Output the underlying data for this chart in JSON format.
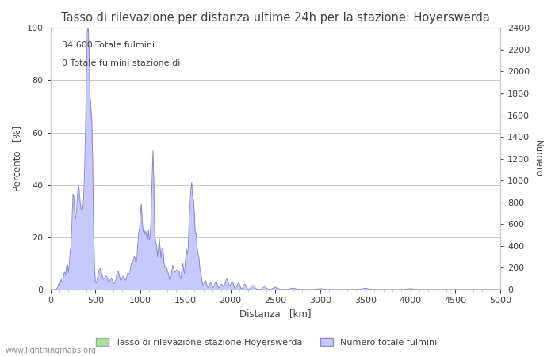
{
  "title": "Tasso di rilevazione per distanza ultime 24h per la stazione: Hoyerswerda",
  "annotation_line1": "34.600 Totale fulmini",
  "annotation_line2": "0 Totale fulmini stazione di",
  "xlabel": "Distanza   [km]",
  "ylabel_left": "Percento   [%]",
  "ylabel_right": "Numero",
  "xlim": [
    0,
    5000
  ],
  "ylim_left": [
    0,
    100
  ],
  "ylim_right": [
    0,
    2400
  ],
  "yticks_left": [
    0,
    20,
    40,
    60,
    80,
    100
  ],
  "yticks_right": [
    0,
    200,
    400,
    600,
    800,
    1000,
    1200,
    1400,
    1600,
    1800,
    2000,
    2200,
    2400
  ],
  "xticks": [
    0,
    500,
    1000,
    1500,
    2000,
    2500,
    3000,
    3500,
    4000,
    4500,
    5000
  ],
  "legend_label_green": "Tasso di rilevazione stazione Hoyerswerda",
  "legend_label_blue": "Numero totale fulmini",
  "watermark": "www.lightningmaps.org",
  "fill_blue_color": "#c8c8ff",
  "fill_blue_edge": "#8888cc",
  "fill_green_color": "#aaddaa",
  "fill_green_edge": "#88bb88",
  "bg_color": "#ffffff",
  "grid_color": "#c8c8c8",
  "font_color": "#404040",
  "title_fontsize": 10.5,
  "label_fontsize": 8.5,
  "tick_fontsize": 8,
  "annot_fontsize": 8
}
